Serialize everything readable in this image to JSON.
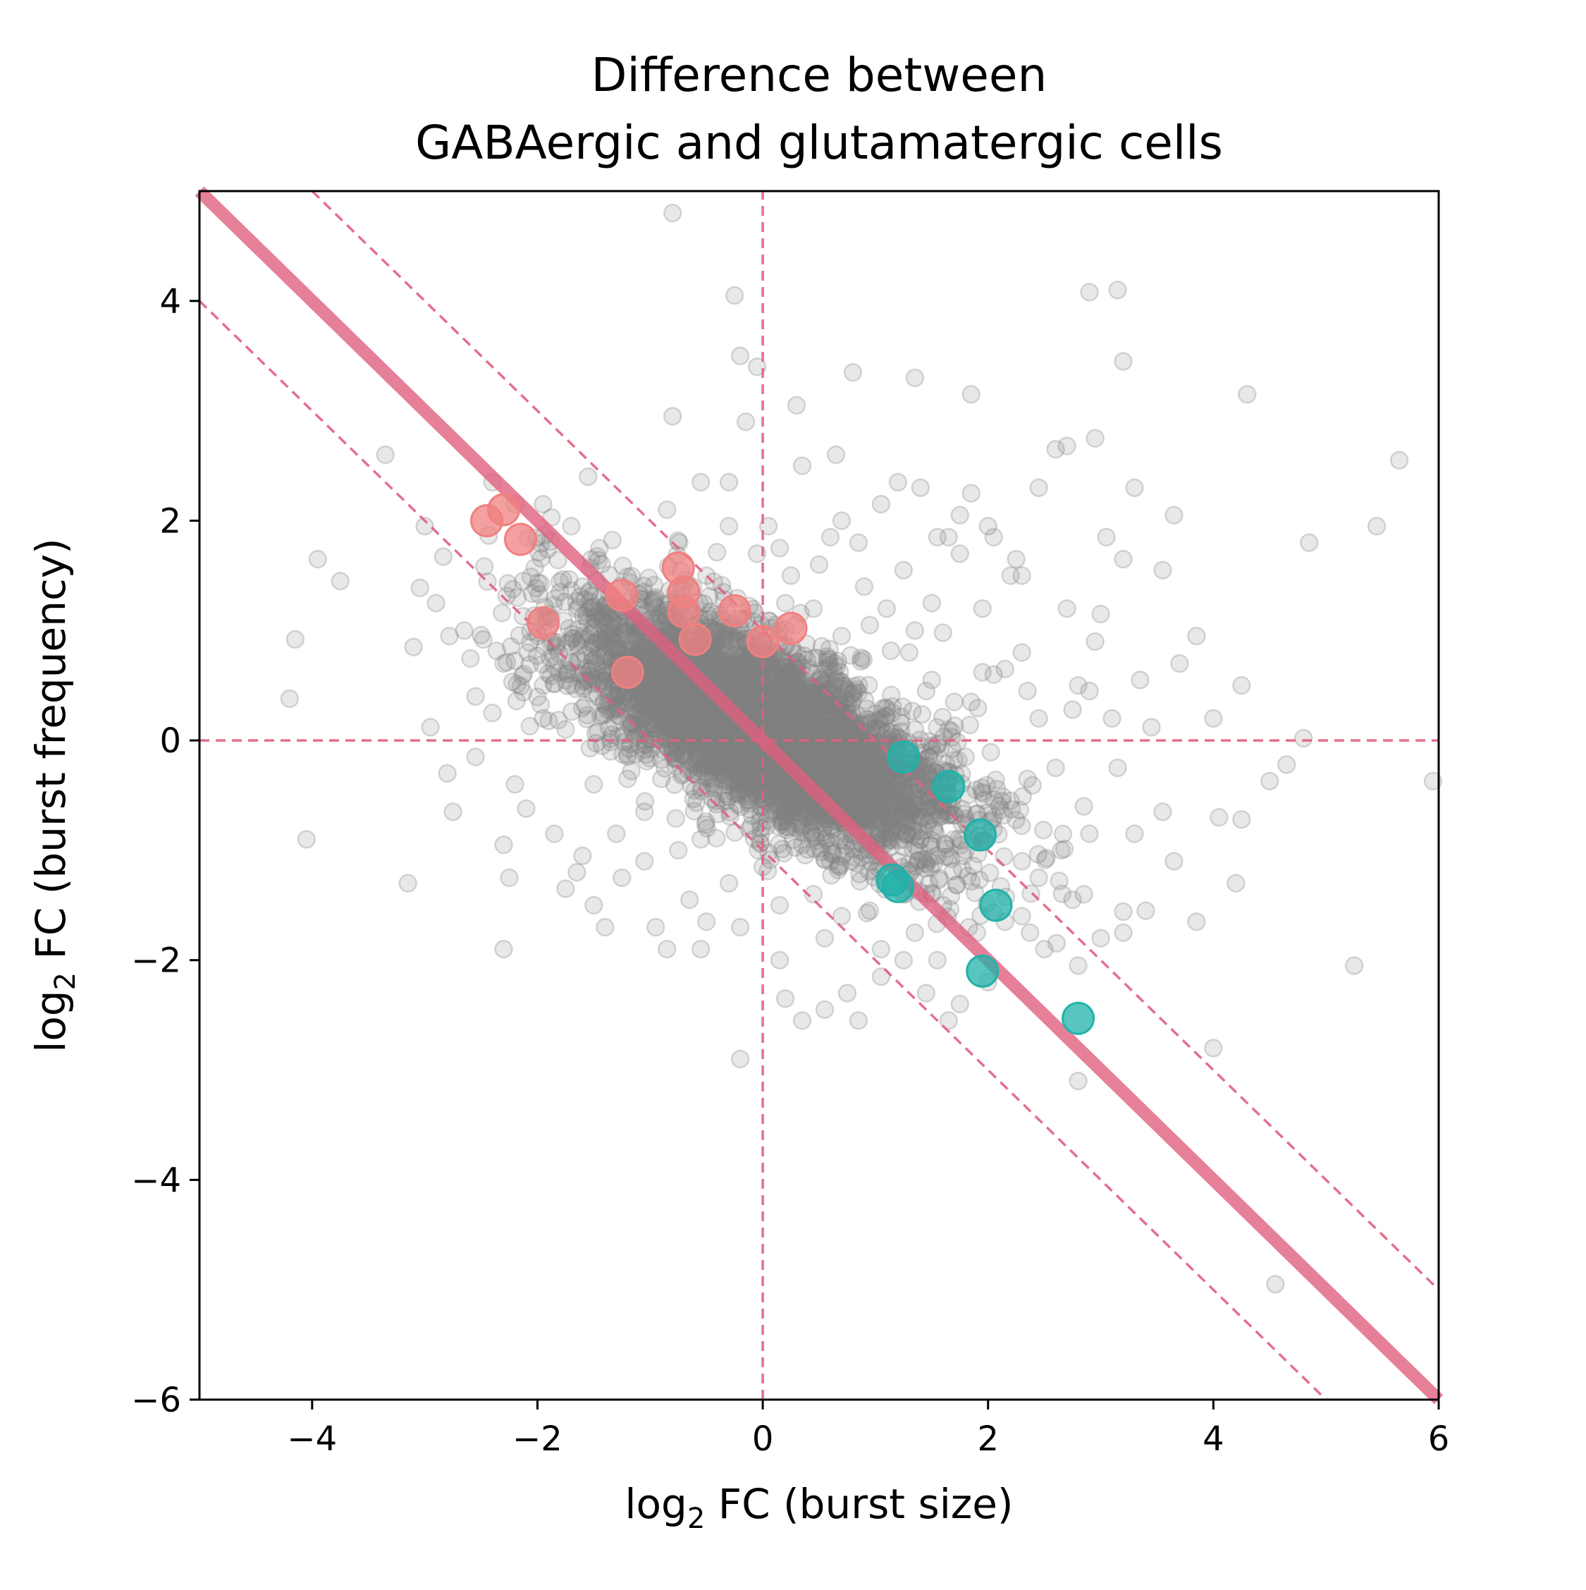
{
  "chart_data": {
    "type": "scatter",
    "title_lines": [
      "Difference between",
      "GABAergic and glutamatergic cells"
    ],
    "xlabel": {
      "prefix": "log",
      "sub": "2",
      "suffix": " FC (burst size)"
    },
    "ylabel": {
      "prefix": "log",
      "sub": "2",
      "suffix": " FC (burst frequency)"
    },
    "xlim": [
      -5,
      6
    ],
    "ylim": [
      -6,
      5
    ],
    "xticks": [
      -4,
      -2,
      0,
      2,
      4,
      6
    ],
    "yticks": [
      -6,
      -4,
      -2,
      0,
      2,
      4
    ],
    "grid": false,
    "colors": {
      "background_points": "#808080",
      "gaba_highlight": "#F08080",
      "glut_highlight": "#20B2AA",
      "reference_line": "#E0607E"
    },
    "reference_lines": [
      {
        "name": "y = -x",
        "slope": -1,
        "intercept": 0,
        "style": "solid"
      },
      {
        "name": "y = -x + 1",
        "slope": -1,
        "intercept": 1,
        "style": "dashed"
      },
      {
        "name": "y = -x - 1",
        "slope": -1,
        "intercept": -1,
        "style": "dashed"
      },
      {
        "name": "x = 0",
        "vertical": 0,
        "style": "dashed"
      },
      {
        "name": "y = 0",
        "horizontal": 0,
        "style": "dashed"
      }
    ],
    "series": [
      {
        "role": "background",
        "points": [
          [
            -0.8,
            4.8
          ],
          [
            -0.25,
            4.05
          ],
          [
            -0.2,
            3.5
          ],
          [
            -0.05,
            3.4
          ],
          [
            0.8,
            3.35
          ],
          [
            -0.8,
            2.95
          ],
          [
            -0.15,
            2.9
          ],
          [
            0.3,
            3.05
          ],
          [
            -3.35,
            2.6
          ],
          [
            -3.0,
            1.95
          ],
          [
            -3.95,
            1.65
          ],
          [
            -3.75,
            1.45
          ],
          [
            -4.15,
            0.92
          ],
          [
            -4.2,
            0.38
          ],
          [
            -4.05,
            -0.9
          ],
          [
            -3.15,
            -1.3
          ],
          [
            -2.4,
            2.35
          ],
          [
            -2.2,
            2.15
          ],
          [
            -1.95,
            2.15
          ],
          [
            -1.7,
            1.95
          ],
          [
            -2.9,
            1.25
          ],
          [
            -3.1,
            0.85
          ],
          [
            -2.65,
            1.0
          ],
          [
            -2.95,
            0.12
          ],
          [
            -2.8,
            -0.3
          ],
          [
            -2.75,
            -0.65
          ],
          [
            -2.3,
            -0.95
          ],
          [
            -2.25,
            -1.25
          ],
          [
            -2.3,
            -1.9
          ],
          [
            -1.75,
            -1.35
          ],
          [
            -1.5,
            -1.5
          ],
          [
            -1.4,
            -1.7
          ],
          [
            -0.95,
            -1.7
          ],
          [
            -0.85,
            -1.9
          ],
          [
            -0.5,
            -1.65
          ],
          [
            -0.55,
            -1.9
          ],
          [
            -0.2,
            -1.7
          ],
          [
            -0.2,
            -2.9
          ],
          [
            0.15,
            -2.0
          ],
          [
            0.2,
            -2.35
          ],
          [
            0.35,
            -2.55
          ],
          [
            0.55,
            -2.45
          ],
          [
            0.75,
            -2.3
          ],
          [
            0.85,
            -2.55
          ],
          [
            1.05,
            -2.15
          ],
          [
            1.25,
            -2.0
          ],
          [
            1.45,
            -2.3
          ],
          [
            1.55,
            -2.0
          ],
          [
            1.75,
            -2.4
          ],
          [
            1.65,
            -2.55
          ],
          [
            2.3,
            -1.6
          ],
          [
            2.5,
            -1.9
          ],
          [
            2.8,
            -2.05
          ],
          [
            2.85,
            -1.4
          ],
          [
            3.0,
            -1.8
          ],
          [
            3.2,
            -1.75
          ],
          [
            2.8,
            -3.1
          ],
          [
            3.85,
            -1.65
          ],
          [
            4.0,
            -2.8
          ],
          [
            4.2,
            -1.3
          ],
          [
            4.05,
            -0.7
          ],
          [
            4.25,
            -0.72
          ],
          [
            4.5,
            -0.37
          ],
          [
            4.65,
            -0.22
          ],
          [
            4.55,
            -4.95
          ],
          [
            5.25,
            -2.05
          ],
          [
            5.95,
            -0.37
          ],
          [
            4.8,
            0.02
          ],
          [
            4.0,
            0.2
          ],
          [
            4.25,
            0.5
          ],
          [
            3.45,
            0.12
          ],
          [
            3.35,
            0.55
          ],
          [
            3.1,
            0.2
          ],
          [
            3.15,
            -0.25
          ],
          [
            3.3,
            -0.85
          ],
          [
            3.4,
            -1.55
          ],
          [
            3.55,
            -0.65
          ],
          [
            3.65,
            -1.1
          ],
          [
            3.7,
            0.7
          ],
          [
            3.85,
            0.95
          ],
          [
            2.8,
            0.5
          ],
          [
            2.75,
            0.28
          ],
          [
            2.9,
            0.45
          ],
          [
            2.45,
            0.2
          ],
          [
            2.35,
            0.45
          ],
          [
            2.15,
            0.65
          ],
          [
            2.3,
            0.8
          ],
          [
            2.2,
            1.5
          ],
          [
            2.25,
            1.65
          ],
          [
            2.3,
            1.5
          ],
          [
            2.7,
            1.2
          ],
          [
            2.95,
            0.9
          ],
          [
            3.0,
            1.15
          ],
          [
            3.05,
            1.85
          ],
          [
            3.2,
            1.65
          ],
          [
            3.55,
            1.55
          ],
          [
            3.65,
            2.05
          ],
          [
            3.3,
            2.3
          ],
          [
            3.2,
            3.45
          ],
          [
            3.15,
            4.1
          ],
          [
            2.9,
            4.08
          ],
          [
            4.3,
            3.15
          ],
          [
            5.65,
            2.55
          ],
          [
            5.45,
            1.95
          ],
          [
            4.85,
            1.8
          ],
          [
            2.6,
            2.65
          ],
          [
            2.7,
            2.68
          ],
          [
            2.95,
            2.75
          ],
          [
            2.45,
            2.3
          ],
          [
            1.85,
            3.15
          ],
          [
            1.35,
            3.3
          ],
          [
            0.65,
            2.6
          ],
          [
            0.35,
            2.5
          ],
          [
            1.2,
            2.35
          ],
          [
            1.4,
            2.3
          ],
          [
            1.05,
            2.15
          ],
          [
            1.85,
            2.25
          ],
          [
            1.75,
            2.05
          ],
          [
            2.0,
            1.95
          ],
          [
            1.65,
            1.85
          ],
          [
            1.55,
            1.85
          ],
          [
            1.75,
            1.7
          ],
          [
            2.05,
            1.85
          ],
          [
            1.25,
            1.55
          ],
          [
            1.95,
            1.2
          ],
          [
            1.5,
            1.25
          ],
          [
            1.1,
            1.2
          ],
          [
            1.6,
            0.98
          ],
          [
            2.05,
            0.6
          ],
          [
            1.95,
            0.62
          ],
          [
            1.85,
            0.35
          ],
          [
            1.7,
            0.35
          ],
          [
            1.5,
            0.55
          ],
          [
            1.3,
            0.8
          ],
          [
            1.15,
            0.25
          ],
          [
            -1.55,
            2.4
          ],
          [
            -0.85,
            2.1
          ],
          [
            -0.55,
            2.35
          ],
          [
            -0.3,
            2.35
          ],
          [
            -0.3,
            1.95
          ],
          [
            0.05,
            1.95
          ],
          [
            0.15,
            1.75
          ],
          [
            -0.05,
            1.7
          ],
          [
            0.6,
            1.85
          ],
          [
            0.7,
            2.0
          ],
          [
            0.5,
            1.6
          ],
          [
            0.85,
            1.8
          ],
          [
            -1.45,
            1.75
          ],
          [
            -1.6,
            1.4
          ],
          [
            -1.8,
            1.35
          ],
          [
            -2.0,
            0.95
          ],
          [
            -2.3,
            0.7
          ],
          [
            -2.55,
            0.4
          ],
          [
            -2.4,
            0.25
          ],
          [
            -2.55,
            -0.15
          ],
          [
            -2.2,
            -0.4
          ],
          [
            -2.1,
            -0.62
          ],
          [
            -1.85,
            -0.85
          ],
          [
            -1.6,
            -1.05
          ],
          [
            -1.65,
            -1.2
          ],
          [
            -1.25,
            -1.25
          ],
          [
            -1.3,
            -0.85
          ],
          [
            -1.05,
            -1.1
          ],
          [
            -0.75,
            -1.0
          ],
          [
            -0.65,
            -1.45
          ],
          [
            -0.3,
            -1.3
          ],
          [
            0.0,
            -1.15
          ],
          [
            0.15,
            -1.5
          ],
          [
            0.45,
            -1.4
          ],
          [
            0.55,
            -1.8
          ],
          [
            0.7,
            -1.6
          ],
          [
            0.95,
            -1.55
          ],
          [
            1.2,
            -1.1
          ],
          [
            1.4,
            -0.9
          ],
          [
            1.55,
            -1.05
          ],
          [
            1.8,
            -1.0
          ],
          [
            2.05,
            -0.7
          ],
          [
            2.2,
            -0.55
          ],
          [
            2.3,
            -1.1
          ],
          [
            2.45,
            -1.25
          ],
          [
            2.15,
            -1.65
          ],
          [
            2.35,
            -0.35
          ],
          [
            2.6,
            -0.25
          ],
          [
            2.85,
            -0.6
          ],
          [
            2.65,
            -1.0
          ],
          [
            2.9,
            -0.85
          ],
          [
            2.75,
            -1.45
          ],
          [
            1.05,
            -1.9
          ],
          [
            1.35,
            -1.75
          ],
          [
            1.6,
            -1.5
          ],
          [
            1.9,
            -1.75
          ],
          [
            2.0,
            -2.2
          ],
          [
            0.35,
            -0.95
          ],
          [
            -0.55,
            -0.9
          ],
          [
            -1.6,
            0.6
          ],
          [
            -1.95,
            0.2
          ],
          [
            -1.15,
            1.05
          ],
          [
            -0.95,
            1.3
          ],
          [
            0.45,
            1.2
          ],
          [
            0.95,
            1.05
          ],
          [
            1.35,
            1.0
          ],
          [
            0.25,
            1.5
          ],
          [
            -0.5,
            1.5
          ],
          [
            -1.2,
            -0.35
          ],
          [
            -1.5,
            -0.4
          ],
          [
            0.6,
            -1.1
          ],
          [
            0.95,
            -0.85
          ],
          [
            1.1,
            -1.3
          ],
          [
            -1.05,
            -0.65
          ],
          [
            -1.35,
            -0.1
          ],
          [
            -0.75,
            0.9
          ],
          [
            0.7,
            0.95
          ],
          [
            1.45,
            0.45
          ],
          [
            1.65,
            0.1
          ],
          [
            1.8,
            -0.15
          ],
          [
            1.45,
            -0.5
          ],
          [
            0.55,
            -0.6
          ],
          [
            -0.9,
            -0.35
          ],
          [
            -1.75,
            0.1
          ],
          [
            -1.95,
            0.5
          ],
          [
            1.25,
            -1.4
          ],
          [
            -0.35,
            1.35
          ],
          [
            0.2,
            1.25
          ],
          [
            0.9,
            1.4
          ]
        ]
      },
      {
        "role": "gaba_highlight",
        "points": [
          [
            -2.45,
            2.0
          ],
          [
            -2.3,
            2.1
          ],
          [
            -2.15,
            1.83
          ],
          [
            -1.95,
            1.07
          ],
          [
            -1.25,
            1.32
          ],
          [
            -1.2,
            0.62
          ],
          [
            -0.75,
            1.57
          ],
          [
            -0.7,
            1.35
          ],
          [
            -0.7,
            1.17
          ],
          [
            -0.6,
            0.92
          ],
          [
            -0.25,
            1.18
          ],
          [
            0.0,
            0.9
          ],
          [
            0.25,
            1.02
          ]
        ]
      },
      {
        "role": "glut_highlight",
        "points": [
          [
            1.25,
            -0.15
          ],
          [
            1.65,
            -0.42
          ],
          [
            1.93,
            -0.86
          ],
          [
            1.15,
            -1.27
          ],
          [
            1.2,
            -1.33
          ],
          [
            2.07,
            -1.5
          ],
          [
            1.95,
            -2.1
          ],
          [
            2.8,
            -2.53
          ]
        ]
      }
    ],
    "dense_cloud": {
      "description_free": true,
      "count": 4500,
      "center": [
        0.0,
        0.1
      ],
      "sd_major": 0.95,
      "sd_minor": 0.35,
      "major_axis_slope": -0.55
    }
  }
}
